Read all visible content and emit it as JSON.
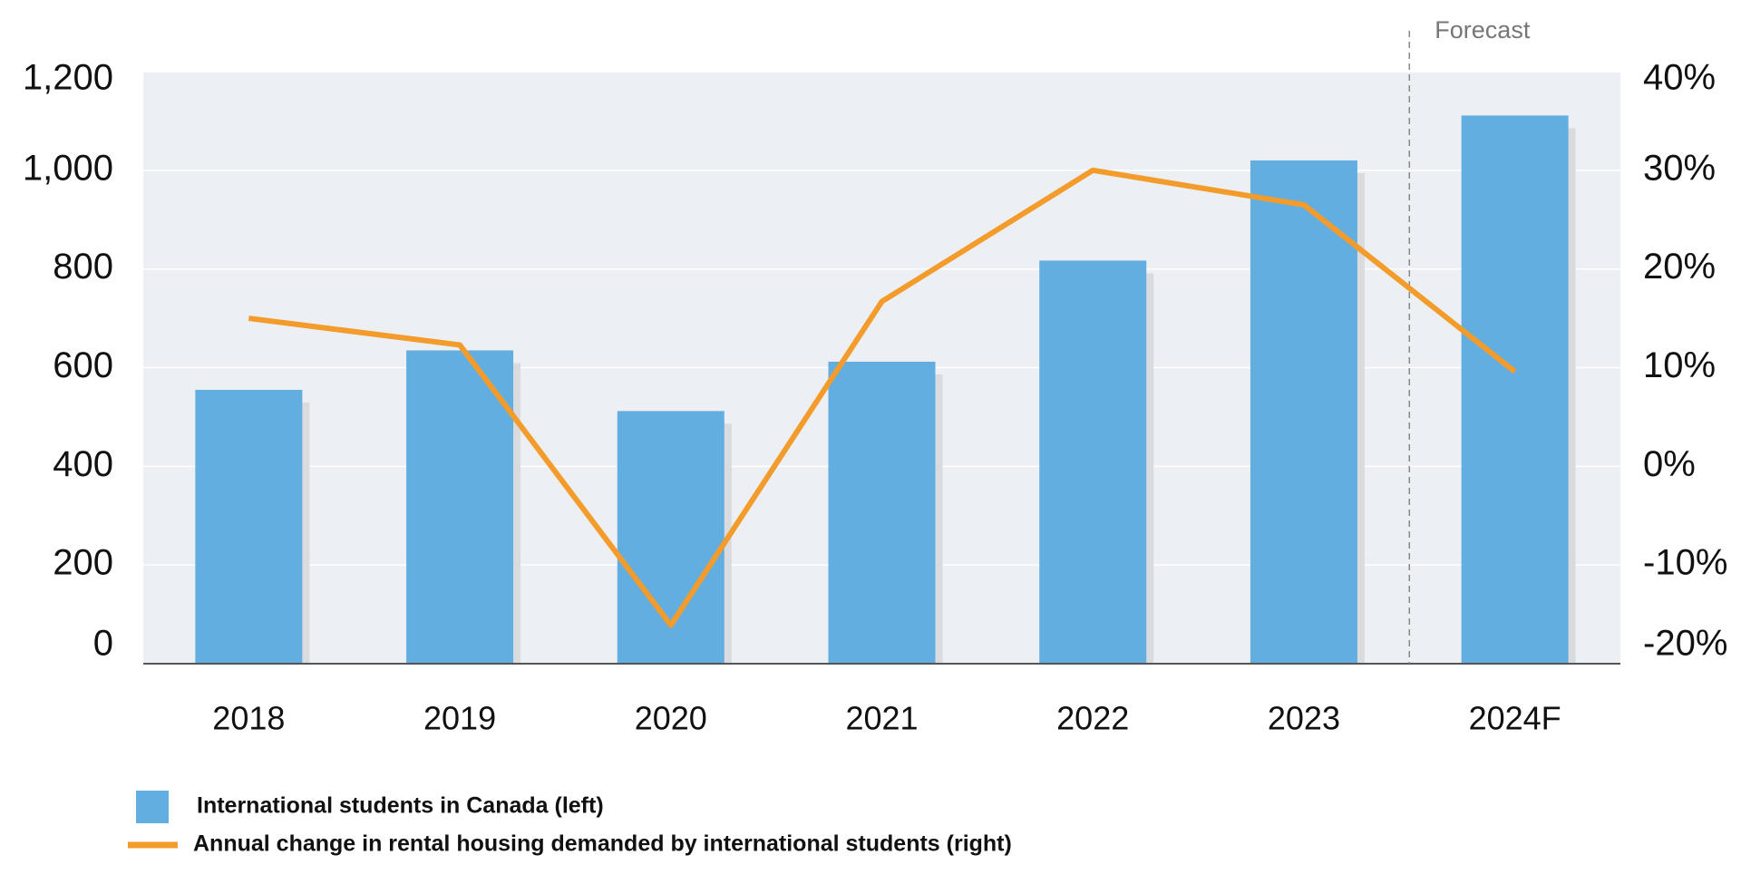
{
  "chart_data": {
    "type": "bar-line",
    "categories": [
      "2018",
      "2019",
      "2020",
      "2021",
      "2022",
      "2023",
      "2024F"
    ],
    "series": [
      {
        "name": "International students in Canada (left)",
        "type": "bar",
        "color": "#62aee0",
        "values": [
          555,
          635,
          512,
          612,
          817,
          1020,
          1111
        ]
      },
      {
        "name": "Annual change in rental housing demanded by international students (right)",
        "type": "line",
        "axis": "y2",
        "color": "#f39c2c",
        "values": [
          15,
          12.3,
          -16.1,
          16.7,
          30,
          26.5,
          9.6
        ]
      }
    ],
    "ylim": [
      0,
      1200
    ],
    "yticks": [
      0,
      200,
      400,
      600,
      800,
      {
        "value": 1000,
        "label": "1,000"
      },
      {
        "value": 1200,
        "label": "1,200"
      }
    ],
    "y2lim": [
      -20,
      40
    ],
    "y2ticks": [
      {
        "value": -20,
        "label": "-20%"
      },
      {
        "value": -10,
        "label": "-10%"
      },
      {
        "value": 0,
        "label": "0%"
      },
      {
        "value": 10,
        "label": "10%"
      },
      {
        "value": 20,
        "label": "20%"
      },
      {
        "value": 30,
        "label": "30%"
      },
      {
        "value": 40,
        "label": "40%"
      }
    ],
    "annotation": "Forecast",
    "grid": true
  }
}
